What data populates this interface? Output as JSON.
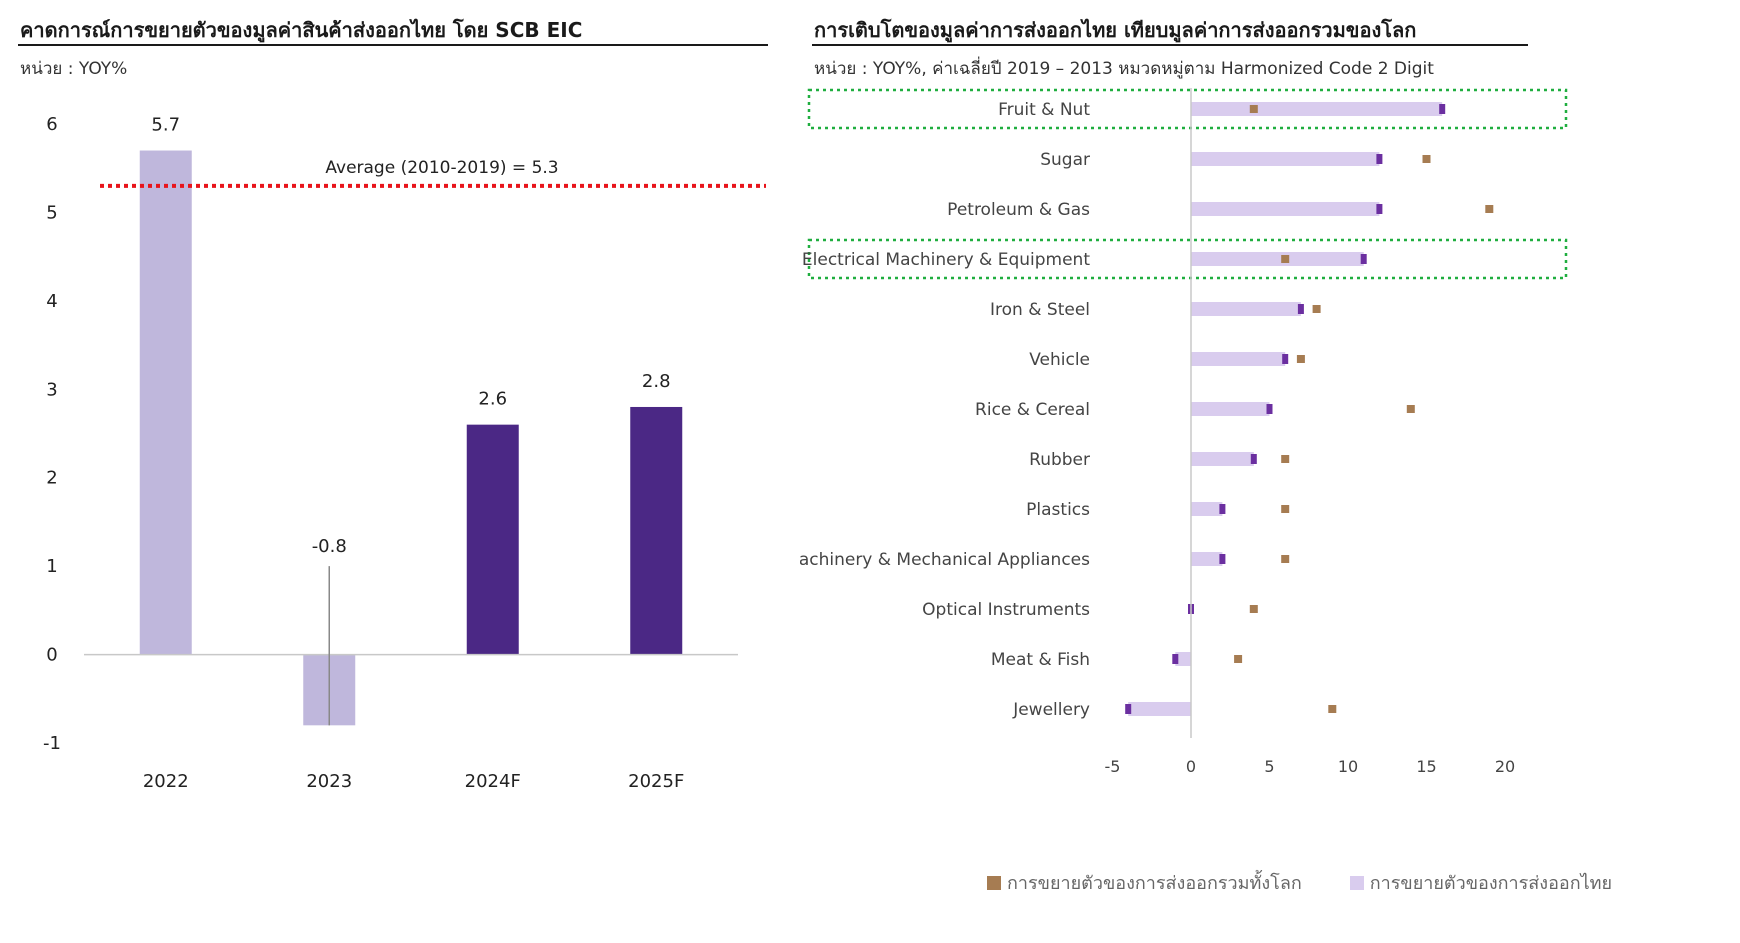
{
  "left": {
    "title": "คาดการณ์การขยายตัวของมูลค่าสินค้าส่งออกไทย  โดย SCB EIC",
    "unit": "หน่วย : YOY%"
  },
  "right": {
    "title": "การเติบโตของมูลค่าการส่งออกไทย  เทียบมูลค่าการส่งออกรวมของโลก",
    "unit": "หน่วย : YOY%, ค่าเฉลี่ยปี 2019 – 2013 หมวดหมู่ตาม Harmonized Code 2 Digit"
  },
  "colors": {
    "actual_bar": "#bfb7dc",
    "forecast_bar": "#4b2885",
    "average_line": "#e8141b",
    "world_marker": "#a67c52",
    "thai_bar": "#d9ccee",
    "thai_marker": "#6b2fa0",
    "highlight_box": "#1fae3f"
  },
  "chart_data": [
    {
      "type": "bar",
      "categories": [
        "2022",
        "2023",
        "2024F",
        "2025F"
      ],
      "values": [
        5.7,
        -0.8,
        2.6,
        2.8
      ],
      "data_labels": [
        "5.7",
        "-0.8",
        "2.6",
        "2.8"
      ],
      "forecast": [
        false,
        false,
        true,
        true
      ],
      "ylim": [
        -1,
        6
      ],
      "yticks": [
        -1,
        0,
        1,
        2,
        3,
        4,
        5,
        6
      ],
      "reference_line": {
        "value": 5.3,
        "label": "Average (2010-2019) = 5.3"
      },
      "error_bar": {
        "category": "2023",
        "from": -0.8,
        "to": 1.0
      }
    },
    {
      "type": "bar",
      "orientation": "horizontal",
      "categories": [
        "Fruit & Nut",
        "Sugar",
        "Petroleum & Gas",
        "Electrical Machinery & Equipment",
        "Iron & Steel",
        "Vehicle",
        "Rice & Cereal",
        "Rubber",
        "Plastics",
        "Machinery & Mechanical Appliances",
        "Optical Instruments",
        "Meat & Fish",
        "Jewellery"
      ],
      "series": [
        {
          "name": "การขยายตัวของการส่งออกรวมทั้งโลก",
          "kind": "marker",
          "values": [
            4,
            15,
            19,
            6,
            8,
            7,
            14,
            6,
            6,
            6,
            4,
            3,
            9
          ]
        },
        {
          "name": "การขยายตัวของการส่งออกไทย",
          "kind": "bar",
          "values": [
            16,
            12,
            12,
            11,
            7,
            6,
            5,
            4,
            2,
            2,
            0,
            -1,
            -4
          ]
        }
      ],
      "xlim": [
        -5,
        20
      ],
      "xticks": [
        "-5",
        "0",
        "5",
        "10",
        "15",
        "20"
      ],
      "highlighted": [
        "Fruit & Nut",
        "Electrical Machinery & Equipment"
      ],
      "legend_position": "bottom"
    }
  ]
}
